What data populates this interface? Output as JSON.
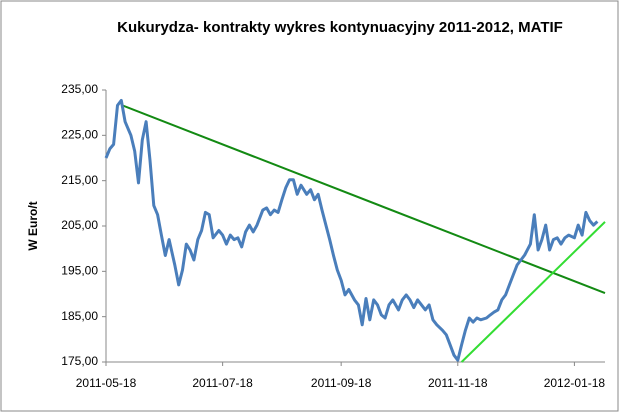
{
  "chart_data": {
    "type": "line",
    "title": "Kukurydza- kontrakty wykres kontynuacyjny 2011-2012,  MATIF",
    "y_label": "W Euro/t",
    "x": [
      "2011-05-18",
      "2011-05-20",
      "2011-05-22",
      "2011-05-24",
      "2011-05-26",
      "2011-05-28",
      "2011-05-31",
      "2011-06-02",
      "2011-06-04",
      "2011-06-06",
      "2011-06-08",
      "2011-06-10",
      "2011-06-12",
      "2011-06-14",
      "2011-06-16",
      "2011-06-18",
      "2011-06-20",
      "2011-06-23",
      "2011-06-25",
      "2011-06-27",
      "2011-06-29",
      "2011-07-01",
      "2011-07-03",
      "2011-07-05",
      "2011-07-07",
      "2011-07-09",
      "2011-07-11",
      "2011-07-13",
      "2011-07-16",
      "2011-07-18",
      "2011-07-20",
      "2011-07-22",
      "2011-07-24",
      "2011-07-26",
      "2011-07-28",
      "2011-07-30",
      "2011-08-01",
      "2011-08-03",
      "2011-08-05",
      "2011-08-08",
      "2011-08-10",
      "2011-08-12",
      "2011-08-14",
      "2011-08-16",
      "2011-08-18",
      "2011-08-20",
      "2011-08-22",
      "2011-08-24",
      "2011-08-26",
      "2011-08-28",
      "2011-08-31",
      "2011-09-02",
      "2011-09-04",
      "2011-09-06",
      "2011-09-08",
      "2011-09-10",
      "2011-09-12",
      "2011-09-14",
      "2011-09-16",
      "2011-09-18",
      "2011-09-20",
      "2011-09-22",
      "2011-09-25",
      "2011-09-27",
      "2011-09-29",
      "2011-10-01",
      "2011-10-03",
      "2011-10-05",
      "2011-10-07",
      "2011-10-09",
      "2011-10-11",
      "2011-10-13",
      "2011-10-15",
      "2011-10-18",
      "2011-10-20",
      "2011-10-22",
      "2011-10-24",
      "2011-10-26",
      "2011-10-28",
      "2011-10-30",
      "2011-11-01",
      "2011-11-03",
      "2011-11-05",
      "2011-11-07",
      "2011-11-10",
      "2011-11-12",
      "2011-11-14",
      "2011-11-16",
      "2011-11-18",
      "2011-11-20",
      "2011-11-22",
      "2011-11-24",
      "2011-11-26",
      "2011-11-28",
      "2011-11-30",
      "2011-12-03",
      "2011-12-05",
      "2011-12-07",
      "2011-12-09",
      "2011-12-11",
      "2011-12-13",
      "2011-12-15",
      "2011-12-17",
      "2011-12-19",
      "2011-12-21",
      "2011-12-23",
      "2011-12-26",
      "2011-12-28",
      "2011-12-30",
      "2012-01-01",
      "2012-01-03",
      "2012-01-05",
      "2012-01-07",
      "2012-01-09",
      "2012-01-11",
      "2012-01-13",
      "2012-01-15",
      "2012-01-18",
      "2012-01-20",
      "2012-01-22",
      "2012-01-24",
      "2012-01-26",
      "2012-01-28",
      "2012-01-30"
    ],
    "series": [
      {
        "color": "#4a7ebb",
        "values": [
          220,
          222,
          223,
          231.6,
          232.7,
          228,
          225,
          221.5,
          214.5,
          224,
          228,
          219.5,
          209.5,
          207.5,
          203,
          198.5,
          202,
          196.4,
          192,
          195.3,
          201,
          199.7,
          197.5,
          202,
          204,
          208,
          207.5,
          202.4,
          204,
          203,
          201,
          203,
          202,
          202.4,
          200.4,
          203.7,
          205.2,
          203.7,
          205.2,
          208.5,
          209,
          207.5,
          208.5,
          208,
          210.8,
          213.4,
          215.2,
          215.2,
          212,
          214,
          212,
          213,
          210.8,
          212,
          208.5,
          205.2,
          202,
          198.5,
          195.3,
          193,
          189.8,
          191,
          188.7,
          187.6,
          183.2,
          189,
          184.3,
          188.7,
          187.6,
          185.4,
          184.7,
          187.6,
          188.7,
          186.5,
          188.7,
          189.8,
          188.7,
          187,
          188.7,
          187.6,
          186.5,
          187.6,
          184.3,
          183.2,
          182,
          181,
          178.8,
          176.5,
          175.4,
          178.8,
          182,
          184.7,
          183.8,
          184.7,
          184.3,
          184.7,
          185.4,
          186,
          186.5,
          188.7,
          189.8,
          192,
          194.2,
          196.4,
          197.5,
          198.6,
          201,
          207.5,
          199.7,
          202,
          205.2,
          199.7,
          202,
          202.4,
          201,
          202.4,
          203,
          202.4,
          205.2,
          203,
          208,
          206.2,
          205.2,
          206
        ]
      }
    ],
    "trend_lines": [
      {
        "color": "#138a13",
        "x": [
          "2011-05-26",
          "2012-02-03"
        ],
        "values": [
          231.7,
          190.2
        ]
      },
      {
        "color": "#33dd33",
        "x": [
          "2011-11-20",
          "2012-02-03"
        ],
        "values": [
          175,
          205.9
        ]
      }
    ],
    "xlim": [
      "2011-05-18",
      "2012-02-03"
    ],
    "xticks": [
      "2011-05-18",
      "2011-07-18",
      "2011-09-18",
      "2011-11-18",
      "2012-01-18"
    ],
    "ylim": [
      175,
      235
    ],
    "yticks": [
      {
        "value": 175,
        "label": "175,00"
      },
      {
        "value": 185,
        "label": "185,00"
      },
      {
        "value": 195,
        "label": "195,00"
      },
      {
        "value": 205,
        "label": "205,00"
      },
      {
        "value": 215,
        "label": "215,00"
      },
      {
        "value": 225,
        "label": "225,00"
      },
      {
        "value": 235,
        "label": "235,00"
      }
    ],
    "grid": false
  }
}
